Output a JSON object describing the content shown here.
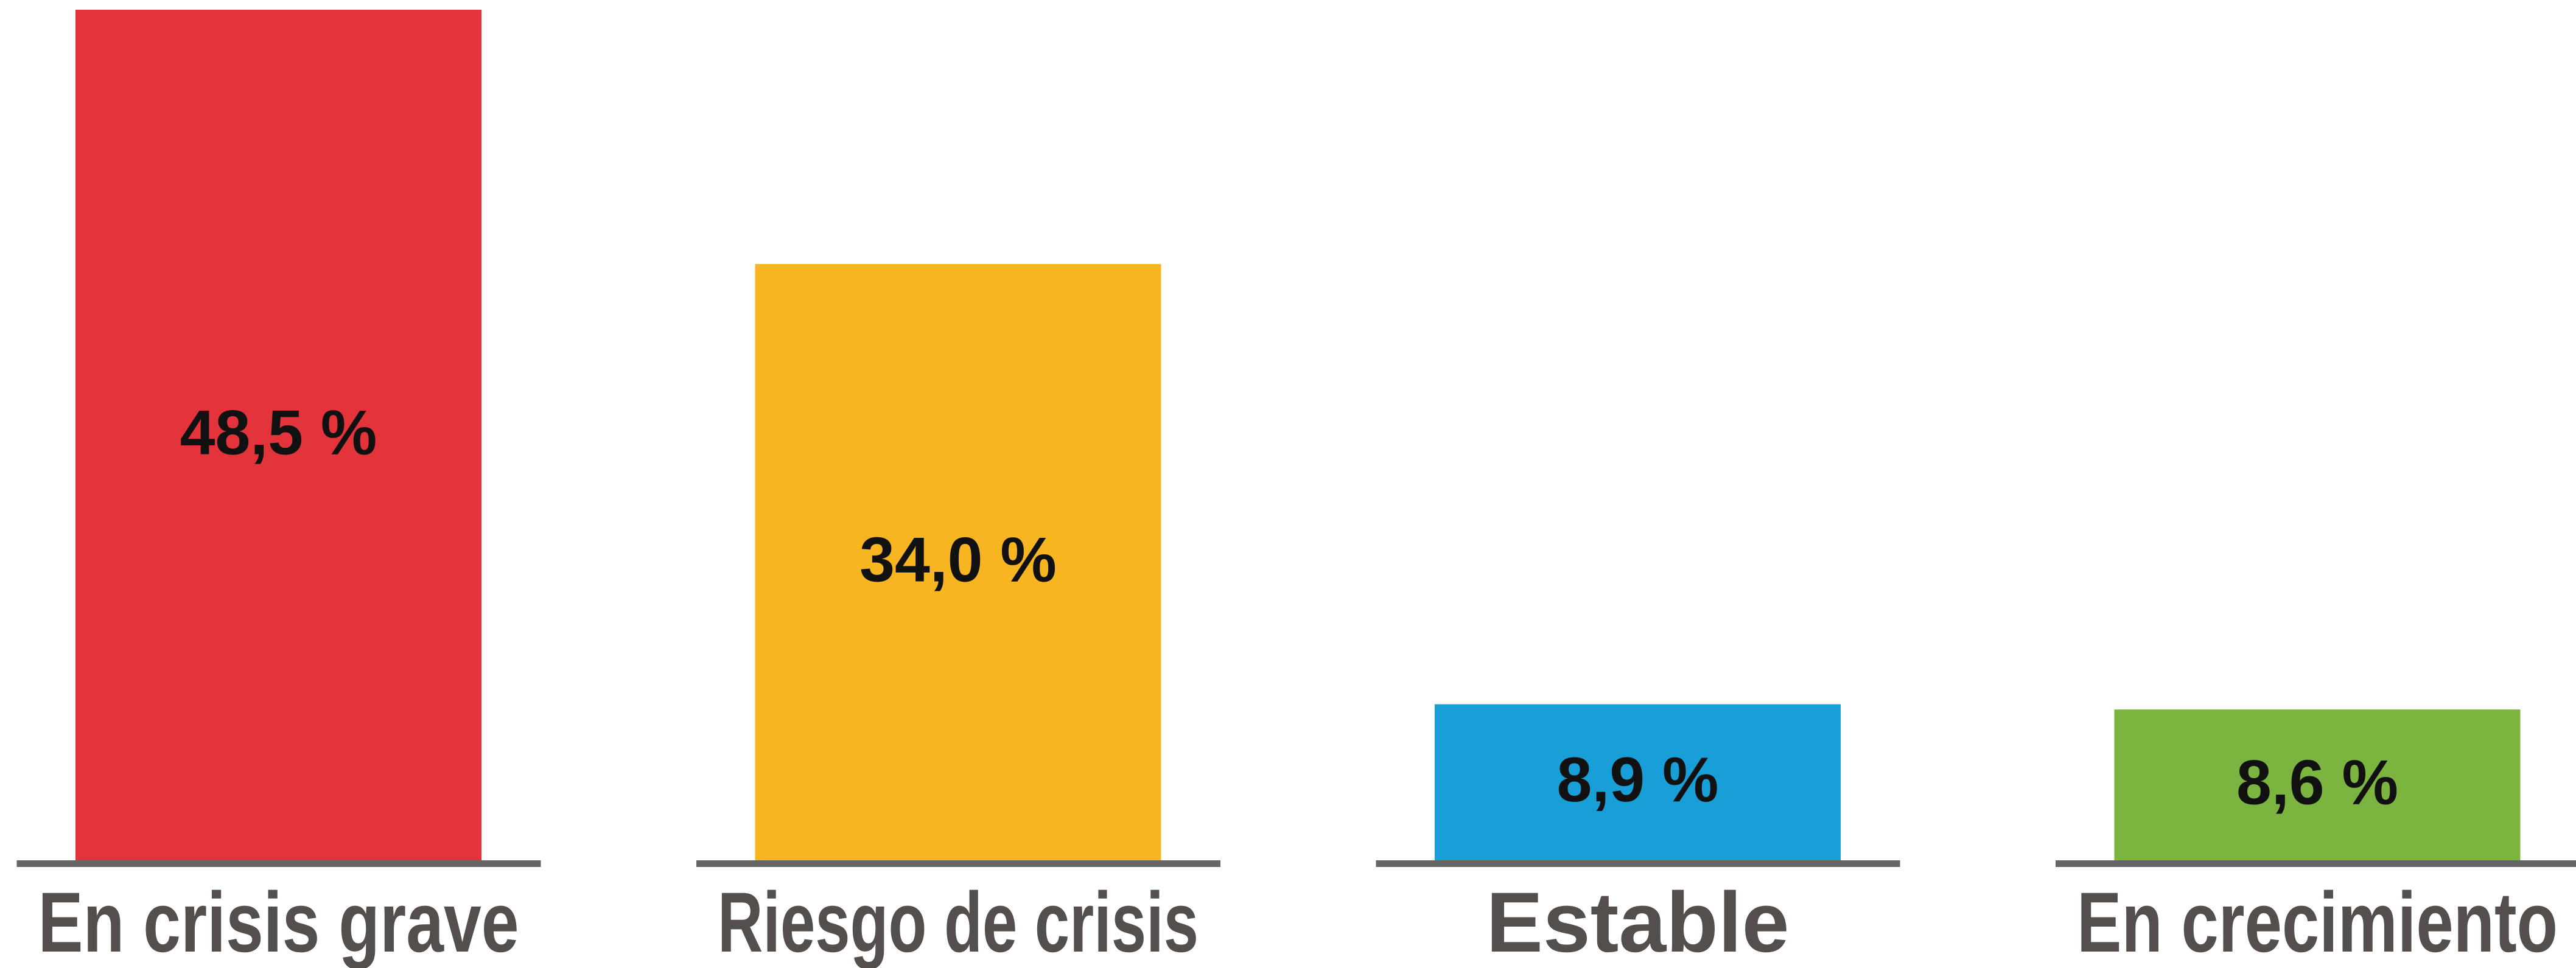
{
  "chart_data": {
    "type": "bar",
    "categories": [
      "En crisis grave",
      "Riesgo de crisis",
      "Estable",
      "En crecimiento"
    ],
    "values": [
      48.5,
      34.0,
      8.9,
      8.6
    ],
    "value_labels": [
      "48,5 %",
      "34,0 %",
      "8,9 %",
      "8,6 %"
    ],
    "colors": [
      "#e4343b",
      "#f8b522",
      "#189fd8",
      "#7bb540"
    ]
  }
}
